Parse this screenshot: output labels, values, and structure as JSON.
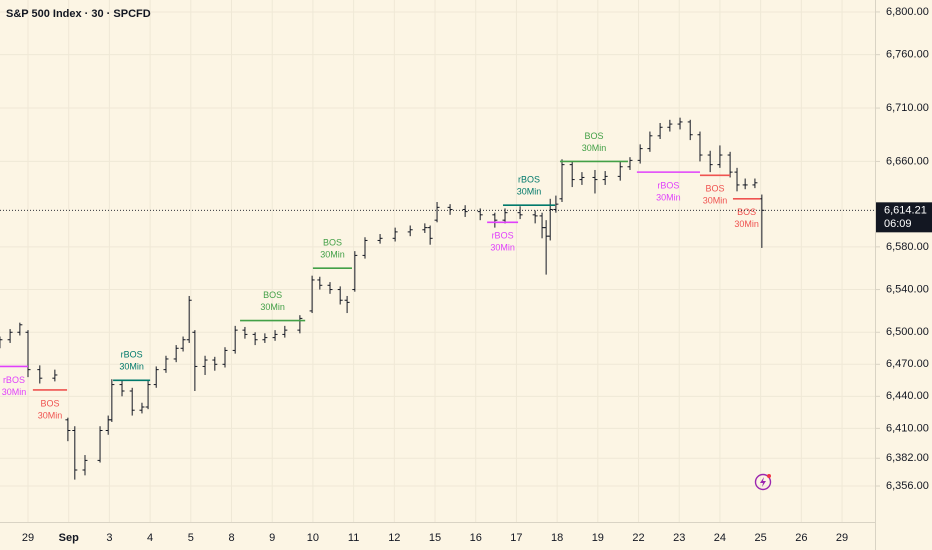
{
  "chart_data": {
    "type": "ohlc",
    "title": "S&P 500 Index · 30 · SPCFD",
    "color": "#131722",
    "grid": true,
    "xlim": [
      -0.688,
      20.81
    ],
    "ylim": [
      6322.3,
      6811.2
    ],
    "xticks": [
      {
        "value": 0,
        "label": "29"
      },
      {
        "value": 1,
        "label": "Sep"
      },
      {
        "value": 2,
        "label": "3"
      },
      {
        "value": 3,
        "label": "4"
      },
      {
        "value": 4,
        "label": "5"
      },
      {
        "value": 5,
        "label": "8"
      },
      {
        "value": 6,
        "label": "9"
      },
      {
        "value": 7,
        "label": "10"
      },
      {
        "value": 8,
        "label": "11"
      },
      {
        "value": 9,
        "label": "12"
      },
      {
        "value": 10,
        "label": "15"
      },
      {
        "value": 11,
        "label": "16"
      },
      {
        "value": 12,
        "label": "17"
      },
      {
        "value": 13,
        "label": "18"
      },
      {
        "value": 14,
        "label": "19"
      },
      {
        "value": 15,
        "label": "22"
      },
      {
        "value": 16,
        "label": "23"
      },
      {
        "value": 17,
        "label": "24"
      },
      {
        "value": 18,
        "label": "25"
      },
      {
        "value": 19,
        "label": "26"
      },
      {
        "value": 20,
        "label": "29"
      }
    ],
    "yticks": [
      {
        "value": 6800,
        "label": "6,800.00"
      },
      {
        "value": 6760,
        "label": "6,760.00"
      },
      {
        "value": 6710,
        "label": "6,710.00"
      },
      {
        "value": 6660,
        "label": "6,660.00"
      },
      {
        "value": 6580,
        "label": "6,580.00"
      },
      {
        "value": 6540,
        "label": "6,540.00"
      },
      {
        "value": 6500,
        "label": "6,500.00"
      },
      {
        "value": 6470,
        "label": "6,470.00"
      },
      {
        "value": 6440,
        "label": "6,440.00"
      },
      {
        "value": 6410,
        "label": "6,410.00"
      },
      {
        "value": 6382,
        "label": "6,382.00"
      },
      {
        "value": 6356,
        "label": "6,356.00"
      }
    ],
    "x": [
      -0.69,
      -0.44,
      -0.2,
      0,
      0.29,
      0.66,
      0.98,
      1.15,
      1.4,
      1.77,
      1.97,
      2.06,
      2.31,
      2.56,
      2.8,
      2.95,
      3.15,
      3.39,
      3.64,
      3.81,
      3.96,
      4.1,
      4.35,
      4.59,
      4.84,
      5.09,
      5.33,
      5.58,
      5.82,
      6.07,
      6.31,
      6.68,
      6.98,
      7.17,
      7.42,
      7.67,
      7.84,
      8.03,
      8.28,
      8.65,
      9.02,
      9.39,
      9.75,
      9.88,
      10.05,
      10.37,
      10.74,
      11.11,
      11.47,
      11.72,
      12.09,
      12.46,
      12.63,
      12.73,
      12.83,
      12.97,
      13.12,
      13.37,
      13.61,
      13.93,
      14.18,
      14.55,
      14.79,
      15.04,
      15.28,
      15.53,
      15.77,
      16.02,
      16.27,
      16.51,
      16.76,
      17.0,
      17.25,
      17.42,
      17.62,
      17.86,
      18.03
    ],
    "open": [
      6488,
      6493,
      6500,
      6500,
      6465,
      6457,
      6418,
      6408,
      6371,
      6380,
      6408,
      6418,
      6451,
      6445,
      6427,
      6430,
      6451,
      6465,
      6475,
      6485,
      6493,
      6500,
      6468,
      6474,
      6470,
      6483,
      6502,
      6498,
      6493,
      6495,
      6498,
      6502,
      6520,
      6549,
      6544,
      6540,
      6530,
      6540,
      6572,
      6586,
      6588,
      6594,
      6596,
      6598,
      6605,
      6617,
      6615,
      6613,
      6610,
      6605,
      6612,
      6610,
      6609,
      6598,
      6590,
      6615,
      6625,
      6657,
      6643,
      6645,
      6643,
      6646,
      6655,
      6661,
      6672,
      6684,
      6692,
      6695,
      6697,
      6685,
      6666,
      6657,
      6666,
      6650,
      6638,
      6638,
      6625
    ],
    "high": [
      6496,
      6503,
      6509,
      6502,
      6469,
      6465,
      6420,
      6412,
      6385,
      6412,
      6422,
      6456,
      6455,
      6448,
      6434,
      6455,
      6468,
      6478,
      6488,
      6496,
      6534,
      6502,
      6478,
      6477,
      6486,
      6506,
      6505,
      6500,
      6499,
      6502,
      6506,
      6516,
      6553,
      6552,
      6547,
      6543,
      6534,
      6576,
      6589,
      6592,
      6598,
      6600,
      6602,
      6600,
      6622,
      6620,
      6619,
      6616,
      6612,
      6616,
      6618,
      6614,
      6612,
      6605,
      6625,
      6628,
      6662,
      6660,
      6650,
      6652,
      6651,
      6660,
      6664,
      6676,
      6688,
      6696,
      6699,
      6701,
      6699,
      6688,
      6670,
      6675,
      6669,
      6654,
      6644,
      6644,
      6629
    ],
    "low": [
      6485,
      6490,
      6497,
      6458,
      6452,
      6454,
      6398,
      6362,
      6366,
      6378,
      6404,
      6416,
      6440,
      6422,
      6424,
      6428,
      6448,
      6462,
      6472,
      6482,
      6490,
      6445,
      6460,
      6464,
      6467,
      6480,
      6494,
      6488,
      6490,
      6492,
      6495,
      6499,
      6518,
      6540,
      6536,
      6526,
      6518,
      6538,
      6569,
      6583,
      6585,
      6590,
      6593,
      6582,
      6603,
      6610,
      6608,
      6605,
      6598,
      6602,
      6606,
      6602,
      6588,
      6554,
      6586,
      6612,
      6622,
      6636,
      6638,
      6630,
      6638,
      6642,
      6652,
      6658,
      6669,
      6681,
      6688,
      6690,
      6680,
      6660,
      6650,
      6654,
      6645,
      6632,
      6634,
      6635,
      6579
    ],
    "close": [
      6493,
      6500,
      6507,
      6465,
      6457,
      6460,
      6408,
      6371,
      6380,
      6408,
      6418,
      6451,
      6445,
      6427,
      6430,
      6451,
      6465,
      6475,
      6485,
      6493,
      6530,
      6468,
      6474,
      6470,
      6483,
      6502,
      6498,
      6493,
      6495,
      6498,
      6502,
      6513,
      6549,
      6544,
      6540,
      6530,
      6528,
      6572,
      6586,
      6588,
      6594,
      6596,
      6598,
      6588,
      6617,
      6615,
      6613,
      6610,
      6605,
      6612,
      6610,
      6609,
      6598,
      6590,
      6615,
      6620,
      6657,
      6643,
      6645,
      6643,
      6646,
      6655,
      6661,
      6672,
      6684,
      6692,
      6695,
      6697,
      6685,
      6666,
      6657,
      6666,
      6650,
      6638,
      6638,
      6640,
      6614.21
    ],
    "last_price": {
      "value": 6614.21,
      "label": "6,614.21"
    },
    "countdown": "06:09",
    "annotations": [
      {
        "label": "rBOS",
        "timeframe": "30Min",
        "color": "#e040fb",
        "level": 6468,
        "x1": -0.69,
        "x2": 0,
        "position": "below"
      },
      {
        "label": "BOS",
        "timeframe": "30Min",
        "color": "#ef5350",
        "level": 6446,
        "x1": 0.12,
        "x2": 0.96,
        "position": "below"
      },
      {
        "label": "rBOS",
        "timeframe": "30Min",
        "color": "#00796b",
        "level": 6455,
        "x1": 2.09,
        "x2": 3.0,
        "position": "above"
      },
      {
        "label": "BOS",
        "timeframe": "30Min",
        "color": "#43a047",
        "level": 6511,
        "x1": 5.21,
        "x2": 6.81,
        "position": "above"
      },
      {
        "label": "BOS",
        "timeframe": "30Min",
        "color": "#43a047",
        "level": 6560,
        "x1": 7.0,
        "x2": 7.96,
        "position": "above"
      },
      {
        "label": "rBOS",
        "timeframe": "30Min",
        "color": "#e040fb",
        "level": 6603,
        "x1": 11.28,
        "x2": 12.04,
        "position": "below"
      },
      {
        "label": "rBOS",
        "timeframe": "30Min",
        "color": "#00796b",
        "level": 6619,
        "x1": 11.67,
        "x2": 12.95,
        "position": "above"
      },
      {
        "label": "BOS",
        "timeframe": "30Min",
        "color": "#43a047",
        "level": 6660,
        "x1": 13.07,
        "x2": 14.74,
        "position": "above"
      },
      {
        "label": "rBOS",
        "timeframe": "30Min",
        "color": "#e040fb",
        "level": 6650,
        "x1": 14.96,
        "x2": 16.51,
        "position": "below"
      },
      {
        "label": "BOS",
        "timeframe": "30Min",
        "color": "#ef5350",
        "level": 6647,
        "x1": 16.51,
        "x2": 17.25,
        "position": "below"
      },
      {
        "label": "BOS",
        "timeframe": "30Min",
        "color": "#ef5350",
        "level": 6625,
        "x1": 17.32,
        "x2": 17.99,
        "position": "below"
      }
    ]
  }
}
